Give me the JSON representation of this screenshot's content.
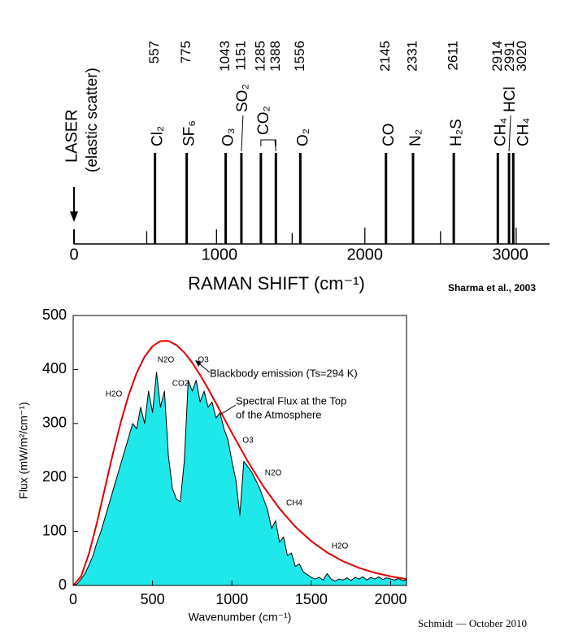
{
  "chart_data": [
    {
      "type": "stick",
      "laser_label": [
        "LASER",
        "(elastic scatter)"
      ],
      "x": [
        0,
        557,
        775,
        1043,
        1151,
        1285,
        1388,
        1556,
        2145,
        2331,
        2611,
        2914,
        2991,
        3020
      ],
      "values": [
        0.16,
        1,
        1,
        1,
        1,
        1,
        1,
        1,
        1,
        1,
        1,
        1,
        1,
        1
      ],
      "labels": [
        null,
        "Cl₂",
        "SF₆",
        "O₃",
        "SO₂",
        "CO₂",
        null,
        "O₂",
        "CO",
        "N₂",
        "H₂S",
        "CH₄",
        "HCl",
        "CH₄"
      ],
      "minor_x": [
        500,
        980,
        1500,
        2000,
        2520,
        3040
      ],
      "minor_values": [
        0.14,
        0.16,
        0.12,
        0.18,
        0.14,
        0.18
      ],
      "xlim": [
        0,
        3270
      ],
      "ylim": [
        0,
        1
      ],
      "xticks": [
        0,
        1000,
        2000,
        3000
      ],
      "xlabel": "RAMAN SHIFT (cm⁻¹)",
      "source": "Sharma et al., 2003",
      "color": "#000000"
    },
    {
      "type": "area",
      "xlim": [
        0,
        2100
      ],
      "ylim": [
        0,
        500
      ],
      "xticks": [
        0,
        500,
        1000,
        1500,
        2000
      ],
      "yticks": [
        0,
        100,
        200,
        300,
        400,
        500
      ],
      "xlabel": "Wavenumber (cm⁻¹)",
      "ylabel": "Flux (mW/m²/cm⁻¹)",
      "series": [
        {
          "type": "area",
          "color": "#1ee8ea",
          "x": [
            0,
            25,
            50,
            75,
            100,
            125,
            150,
            175,
            200,
            225,
            250,
            275,
            300,
            325,
            350,
            375,
            400,
            425,
            450,
            475,
            500,
            525,
            550,
            575,
            600,
            625,
            650,
            675,
            700,
            725,
            750,
            775,
            800,
            825,
            850,
            875,
            900,
            925,
            950,
            975,
            1000,
            1025,
            1050,
            1075,
            1100,
            1125,
            1150,
            1175,
            1200,
            1225,
            1250,
            1275,
            1300,
            1325,
            1350,
            1375,
            1400,
            1425,
            1450,
            1475,
            1500,
            1525,
            1550,
            1575,
            1600,
            1625,
            1650,
            1675,
            1700,
            1725,
            1750,
            1775,
            1800,
            1825,
            1850,
            1875,
            1900,
            1925,
            1950,
            1975,
            2000,
            2025,
            2050,
            2075,
            2100
          ],
          "values": [
            0,
            3,
            12,
            22,
            38,
            55,
            80,
            100,
            125,
            150,
            175,
            200,
            225,
            250,
            275,
            300,
            290,
            330,
            300,
            360,
            320,
            395,
            330,
            360,
            240,
            180,
            160,
            155,
            230,
            380,
            360,
            380,
            340,
            360,
            330,
            340,
            310,
            320,
            290,
            270,
            230,
            195,
            130,
            230,
            220,
            210,
            195,
            180,
            160,
            140,
            105,
            120,
            80,
            90,
            55,
            60,
            35,
            40,
            25,
            20,
            15,
            12,
            15,
            10,
            22,
            12,
            8,
            12,
            10,
            14,
            9,
            15,
            12,
            16,
            10,
            15,
            12,
            16,
            11,
            14,
            12,
            10,
            13,
            9,
            10
          ]
        },
        {
          "type": "line",
          "color": "#e00000",
          "x": [
            0,
            50,
            100,
            150,
            200,
            250,
            300,
            350,
            400,
            450,
            500,
            550,
            600,
            650,
            700,
            750,
            800,
            850,
            900,
            950,
            1000,
            1100,
            1200,
            1300,
            1400,
            1500,
            1600,
            1700,
            1800,
            1900,
            2000,
            2100
          ],
          "values": [
            0,
            16.9,
            59.3,
            116.5,
            180.2,
            243.7,
            302.4,
            353.0,
            393.7,
            423.8,
            443.2,
            452.6,
            452.9,
            445.3,
            431.4,
            412.5,
            389.7,
            364.4,
            337.5,
            310.0,
            282.5,
            229.8,
            182.6,
            142.2,
            108.8,
            82.0,
            61.0,
            44.8,
            32.6,
            23.5,
            16.8,
            11.9
          ]
        }
      ],
      "annotations": [
        "H2O",
        "N2O",
        "CO2",
        "O3",
        "Blackbody emission (Ts=294 K)",
        "Spectral Flux at the Top",
        "of the Atmosphere",
        "O3",
        "N2O",
        "CH4",
        "H2O"
      ],
      "credit": "Schmidt — October 2010"
    }
  ]
}
